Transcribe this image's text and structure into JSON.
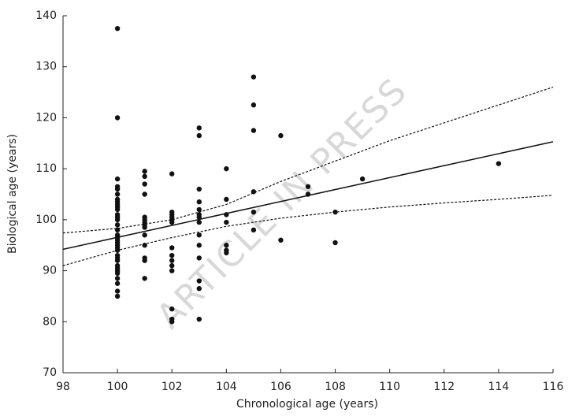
{
  "chart_data": {
    "type": "scatter",
    "xlabel": "Chronological age (years)",
    "ylabel": "Biological age (years)",
    "watermark": "ARTICLE IN PRESS",
    "xlim": [
      98,
      116
    ],
    "xticks": [
      98,
      100,
      102,
      104,
      106,
      108,
      110,
      112,
      114,
      116
    ],
    "ylim": [
      70,
      140
    ],
    "yticks": [
      70,
      80,
      90,
      100,
      110,
      120,
      130,
      140
    ],
    "series": [
      {
        "style": "points",
        "color": "#111111",
        "x": [
          100,
          100,
          100,
          100,
          100,
          100,
          100,
          100,
          100,
          100,
          100,
          100,
          100,
          100,
          100,
          100,
          100,
          100,
          100,
          100,
          100,
          100,
          100,
          100,
          100,
          100,
          100,
          100,
          100,
          100,
          100,
          100,
          100,
          100,
          101,
          101,
          101,
          101,
          101,
          101,
          101,
          101,
          101,
          101,
          101,
          101,
          101,
          101,
          102,
          102,
          102,
          102,
          102,
          102,
          102,
          102,
          102,
          102,
          102,
          102,
          102,
          102,
          103,
          103,
          103,
          103,
          103,
          103,
          103,
          103,
          103,
          103,
          103,
          103,
          103,
          103,
          104,
          104,
          104,
          104,
          104,
          104,
          104,
          105,
          105,
          105,
          105,
          105,
          105,
          106,
          106,
          107,
          107,
          108,
          108,
          109,
          114
        ],
        "values": [
          137.5,
          120,
          108,
          106.5,
          106,
          105,
          104,
          103.5,
          103,
          102.5,
          102,
          101,
          100.5,
          100,
          99,
          98,
          97,
          96.5,
          96,
          95.5,
          95,
          94.5,
          94,
          93,
          92.5,
          92,
          91,
          90.5,
          90,
          89.5,
          88.5,
          87.5,
          86,
          85,
          109.5,
          108.5,
          107,
          105,
          100.5,
          100,
          99.5,
          99,
          98.5,
          97,
          95,
          92.5,
          92,
          88.5,
          109,
          101.5,
          101,
          100.5,
          100,
          99.5,
          94.5,
          93,
          92,
          91,
          90,
          82.5,
          80.5,
          80,
          118,
          116.5,
          106,
          103.5,
          102,
          101,
          100.5,
          99.5,
          97,
          95,
          92.5,
          88,
          86.5,
          80.5,
          110,
          104,
          101,
          99.5,
          95,
          94,
          93.5,
          128,
          122.5,
          117.5,
          105.5,
          101.5,
          98,
          116.5,
          96,
          106.5,
          105,
          101.5,
          95.5,
          108,
          111
        ]
      },
      {
        "style": "solid",
        "color": "#111111",
        "x": [
          98,
          116
        ],
        "values": [
          94.2,
          115.3
        ]
      },
      {
        "style": "dotted",
        "color": "#111111",
        "x": [
          98,
          100,
          102,
          104,
          106,
          108,
          110,
          112,
          114,
          116
        ],
        "values": [
          97.4,
          98.3,
          100,
          103,
          107.5,
          111.5,
          115.5,
          119,
          122.5,
          126
        ]
      },
      {
        "style": "dotted",
        "color": "#111111",
        "x": [
          98,
          100,
          102,
          104,
          106,
          108,
          110,
          112,
          114,
          116
        ],
        "values": [
          91,
          94,
          96.5,
          98.7,
          100.3,
          101.5,
          102.5,
          103.3,
          104,
          104.8
        ]
      }
    ]
  }
}
